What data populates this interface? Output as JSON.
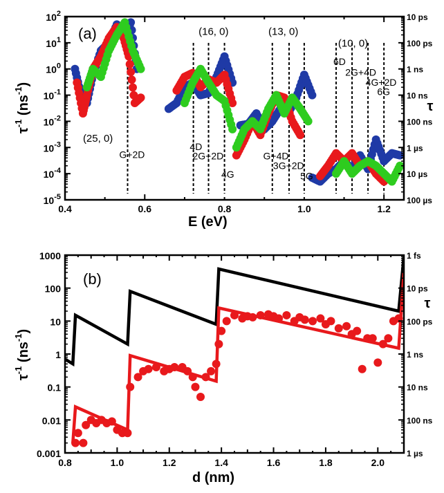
{
  "chart_data": [
    {
      "panel": "(a)",
      "type": "scatter",
      "xlabel": "E (eV)",
      "ylabel": "τ-1 (ns-1)",
      "right_label": "τ",
      "xlim": [
        0.4,
        1.25
      ],
      "ylim": [
        1e-05,
        100
      ],
      "yscale": "log",
      "x_ticks": [
        "0.4",
        "0.6",
        "0.8",
        "1.0",
        "1.2"
      ],
      "y_ticks": [
        "10-5",
        "10-4",
        "10-3",
        "10-2",
        "10-1",
        "100",
        "101",
        "102"
      ],
      "right_ticks": [
        "10 ps",
        "100 ps",
        "1 ns",
        "10 ns",
        "100 ns",
        "1 µs",
        "10 µs",
        "100 µs"
      ],
      "colors": {
        "blue": "#1f3aa6",
        "red": "#e8191c",
        "green": "#2ecc1f"
      },
      "series": [
        {
          "color": "blue",
          "segments": [
            {
              "x": [
                0.425,
                0.44,
                0.455,
                0.47,
                0.49,
                0.51,
                0.53,
                0.55,
                0.565,
                0.58
              ],
              "y": [
                1.0,
                0.1,
                0.05,
                0.6,
                5,
                10,
                50,
                15,
                60,
                1.0
              ]
            },
            {
              "x": [
                0.66,
                0.68,
                0.7,
                0.72,
                0.74,
                0.76,
                0.78,
                0.8,
                0.82
              ],
              "y": [
                0.03,
                0.05,
                0.2,
                0.3,
                0.1,
                0.12,
                0.5,
                3,
                0.3
              ]
            },
            {
              "x": [
                0.84,
                0.86,
                0.88,
                0.9,
                0.92,
                0.94,
                0.96,
                0.98,
                1.0,
                1.02
              ],
              "y": [
                0.007,
                0.008,
                0.02,
                0.005,
                0.01,
                0.03,
                0.02,
                0.08,
                0.6,
                0.1
              ]
            },
            {
              "x": [
                1.02,
                1.04,
                1.06,
                1.08,
                1.1,
                1.12,
                1.14,
                1.16,
                1.18,
                1.2,
                1.22,
                1.24
              ],
              "y": [
                7e-05,
                5e-05,
                0.0001,
                0.00015,
                0.0003,
                0.00015,
                0.0005,
                0.00015,
                0.002,
                0.0003,
                0.0006,
                0.0005
              ]
            }
          ]
        },
        {
          "color": "red",
          "segments": [
            {
              "x": [
                0.43,
                0.445,
                0.455,
                0.47,
                0.49,
                0.51,
                0.53,
                0.545,
                0.56,
                0.575,
                0.59
              ],
              "y": [
                0.3,
                0.02,
                0.1,
                1,
                3,
                15,
                40,
                20,
                3,
                0.05,
                0.08
              ]
            },
            {
              "x": [
                0.68,
                0.7,
                0.72,
                0.74,
                0.76,
                0.78,
                0.8,
                0.82
              ],
              "y": [
                0.15,
                0.5,
                0.7,
                0.2,
                0.4,
                0.3,
                0.6,
                0.05
              ]
            },
            {
              "x": [
                0.83,
                0.85,
                0.87,
                0.89,
                0.91,
                0.93,
                0.95,
                0.97,
                0.99
              ],
              "y": [
                0.0005,
                0.002,
                0.01,
                0.003,
                0.02,
                0.1,
                0.08,
                0.01,
                0.003
              ]
            },
            {
              "x": [
                1.04,
                1.06,
                1.08,
                1.1,
                1.12,
                1.14,
                1.16,
                1.18,
                1.2
              ],
              "y": [
                8e-05,
                0.0002,
                0.0006,
                0.0003,
                0.0006,
                0.0002,
                0.0003,
                0.0001,
                5e-05
              ]
            }
          ]
        },
        {
          "color": "green",
          "segments": [
            {
              "x": [
                0.455,
                0.47,
                0.49,
                0.51,
                0.53,
                0.55,
                0.57,
                0.59
              ],
              "y": [
                0.2,
                1,
                0.5,
                5,
                20,
                60,
                5,
                1
              ]
            },
            {
              "x": [
                0.7,
                0.72,
                0.74,
                0.76,
                0.78,
                0.8,
                0.82
              ],
              "y": [
                0.05,
                0.3,
                1,
                0.3,
                0.1,
                0.06,
                0.005
              ]
            },
            {
              "x": [
                0.83,
                0.85,
                0.87,
                0.89,
                0.91,
                0.93,
                0.95,
                0.97,
                0.99,
                1.01
              ],
              "y": [
                0.001,
                0.005,
                0.01,
                0.005,
                0.03,
                0.1,
                0.02,
                0.08,
                0.03,
                0.01
              ]
            },
            {
              "x": [
                1.08,
                1.1,
                1.12,
                1.14,
                1.16,
                1.18,
                1.2,
                1.22,
                1.24
              ],
              "y": [
                0.0001,
                0.0003,
                0.0001,
                0.0002,
                0.0003,
                0.0002,
                0.0001,
                5e-05,
                0.0002
              ]
            }
          ]
        }
      ],
      "vlines": [
        0.557,
        0.722,
        0.76,
        0.8,
        0.92,
        0.962,
        1.0,
        1.08,
        1.12,
        1.16,
        1.2
      ],
      "annotations": [
        {
          "text": "(25, 0)",
          "x": 0.445,
          "y": 0.00165
        },
        {
          "text": "G+2D",
          "x": 0.536,
          "y": 0.0004
        },
        {
          "text": "(16, 0)",
          "x": 0.735,
          "y": 20
        },
        {
          "text": "(13, 0)",
          "x": 0.91,
          "y": 20
        },
        {
          "text": "(10, 0)",
          "x": 1.085,
          "y": 7
        },
        {
          "text": "4D",
          "x": 0.713,
          "y": 0.0008
        },
        {
          "text": "2G+2D",
          "x": 0.72,
          "y": 0.00035
        },
        {
          "text": "4G",
          "x": 0.792,
          "y": 7e-05
        },
        {
          "text": "G+4D",
          "x": 0.897,
          "y": 0.00035
        },
        {
          "text": "3G+2D",
          "x": 0.922,
          "y": 0.00015
        },
        {
          "text": "5G",
          "x": 0.99,
          "y": 6e-05
        },
        {
          "text": "6D",
          "x": 1.073,
          "y": 1.4
        },
        {
          "text": "2G+4D",
          "x": 1.103,
          "y": 0.55
        },
        {
          "text": "4G+2D",
          "x": 1.154,
          "y": 0.23
        },
        {
          "text": "6G",
          "x": 1.183,
          "y": 0.1
        }
      ]
    },
    {
      "panel": "(b)",
      "type": "line",
      "xlabel": "d (nm)",
      "ylabel": "τ-1 (ns-1)",
      "right_label": "τ",
      "xlim": [
        0.8,
        2.1
      ],
      "ylim": [
        0.001,
        1000
      ],
      "yscale": "log",
      "x_ticks": [
        "0.8",
        "1.0",
        "1.2",
        "1.4",
        "1.6",
        "1.8",
        "2.0"
      ],
      "y_ticks": [
        "0.001",
        "0.01",
        "0.1",
        "1",
        "10",
        "100",
        "1000"
      ],
      "right_ticks": [
        "1 fs",
        "10 ps",
        "100 ps",
        "1 ns",
        "10 ns",
        "100 ns",
        "1 µs"
      ],
      "colors": {
        "black": "#000000",
        "red": "#e8191c"
      },
      "lines": [
        {
          "color": "black",
          "x": [
            0.8,
            0.83,
            0.84,
            1.04,
            1.05,
            1.38,
            1.39,
            2.08,
            2.1
          ],
          "y": [
            0.7,
            0.5,
            15,
            2,
            80,
            8,
            380,
            20,
            900
          ]
        },
        {
          "color": "red",
          "x": [
            0.83,
            0.84,
            1.04,
            1.05,
            1.38,
            1.39,
            2.08,
            2.1
          ],
          "y": [
            0.002,
            0.025,
            0.005,
            0.9,
            0.15,
            25,
            1.5,
            300
          ]
        }
      ],
      "points": {
        "color": "red",
        "x": [
          0.84,
          0.85,
          0.87,
          0.88,
          0.9,
          0.92,
          0.94,
          0.96,
          0.98,
          1.0,
          1.02,
          1.04,
          1.05,
          1.08,
          1.1,
          1.12,
          1.15,
          1.18,
          1.2,
          1.22,
          1.25,
          1.27,
          1.29,
          1.3,
          1.32,
          1.34,
          1.36,
          1.38,
          1.39,
          1.4,
          1.42,
          1.45,
          1.48,
          1.5,
          1.52,
          1.55,
          1.58,
          1.6,
          1.62,
          1.65,
          1.68,
          1.7,
          1.72,
          1.75,
          1.78,
          1.8,
          1.82,
          1.85,
          1.88,
          1.9,
          1.92,
          1.94,
          1.96,
          1.98,
          2.0,
          2.02,
          2.04,
          2.06,
          2.08
        ],
        "y": [
          0.002,
          0.004,
          0.002,
          0.007,
          0.01,
          0.008,
          0.01,
          0.008,
          0.009,
          0.005,
          0.004,
          0.004,
          0.1,
          0.2,
          0.3,
          0.35,
          0.4,
          0.3,
          0.35,
          0.4,
          0.4,
          0.3,
          0.2,
          0.1,
          0.05,
          0.2,
          0.3,
          0.5,
          2,
          5,
          10,
          15,
          12,
          14,
          13,
          15,
          16,
          14,
          12,
          15,
          10,
          13,
          11,
          10,
          12,
          8,
          10,
          6,
          7,
          4,
          5,
          0.35,
          3,
          3,
          0.55,
          2,
          3,
          10,
          12
        ]
      }
    }
  ]
}
